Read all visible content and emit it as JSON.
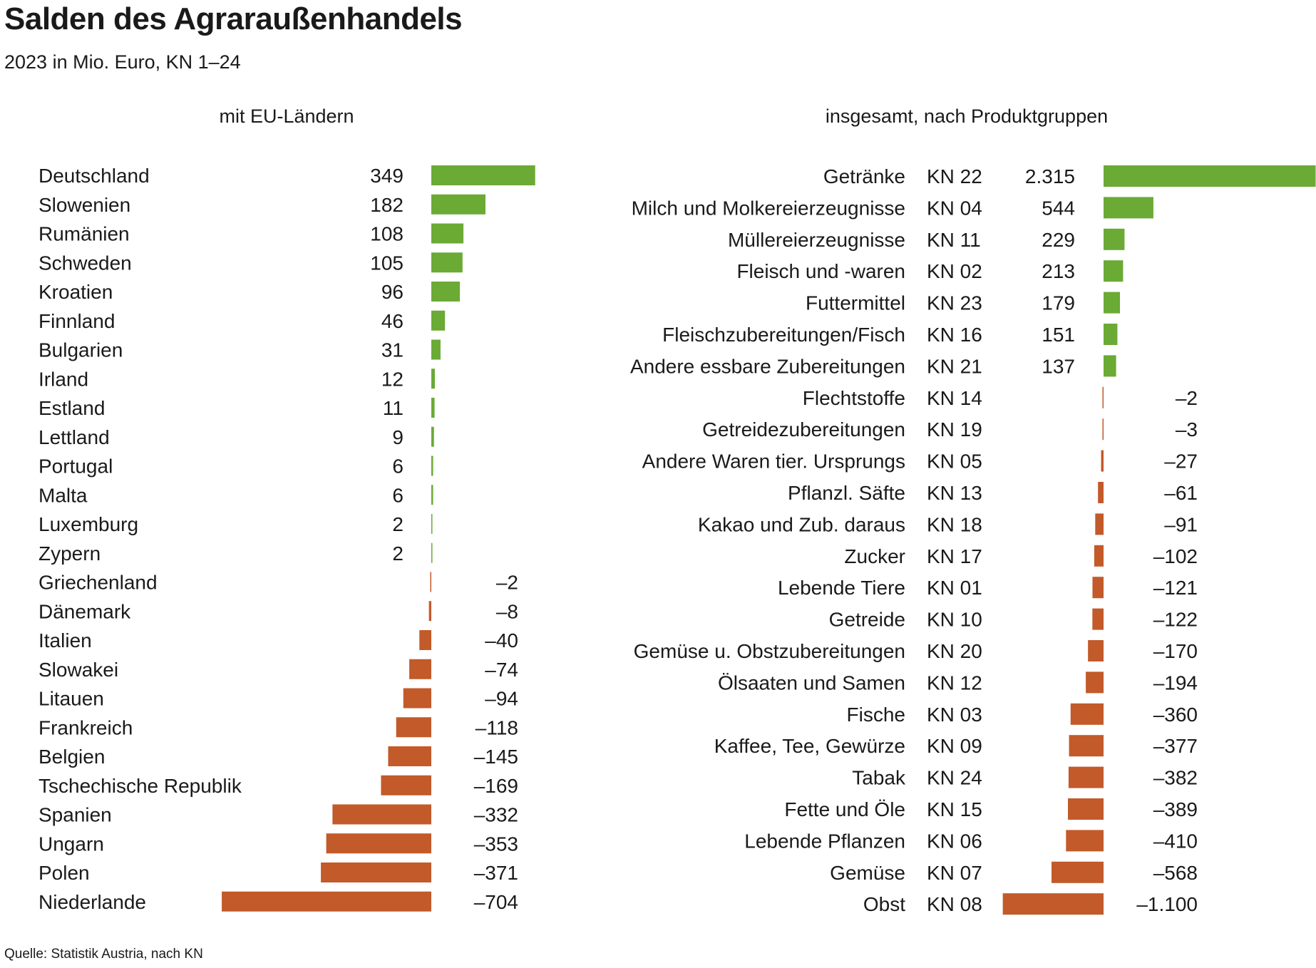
{
  "title": "Salden des Agraraußenhandels",
  "subtitle": "2023 in Mio. Euro, KN 1–24",
  "source": "Quelle: Statistik Austria, nach KN",
  "colors": {
    "positive": "#6aaa35",
    "negative": "#c25a2a"
  },
  "chart_data": [
    {
      "type": "bar",
      "orientation": "horizontal",
      "title": "mit EU-Ländern",
      "categories": [
        "Deutschland",
        "Slowenien",
        "Rumänien",
        "Schweden",
        "Kroatien",
        "Finnland",
        "Bulgarien",
        "Irland",
        "Estland",
        "Lettland",
        "Portugal",
        "Malta",
        "Luxemburg",
        "Zypern",
        "Griechenland",
        "Dänemark",
        "Italien",
        "Slowakei",
        "Litauen",
        "Frankreich",
        "Belgien",
        "Tschechische Republik",
        "Spanien",
        "Ungarn",
        "Polen",
        "Niederlande"
      ],
      "values": [
        349,
        182,
        108,
        105,
        96,
        46,
        31,
        12,
        11,
        9,
        6,
        6,
        2,
        2,
        -2,
        -8,
        -40,
        -74,
        -94,
        -118,
        -145,
        -169,
        -332,
        -353,
        -371,
        -704
      ],
      "value_labels": [
        "349",
        "182",
        "108",
        "105",
        "96",
        "46",
        "31",
        "12",
        "11",
        "9",
        "6",
        "6",
        "2",
        "2",
        "–2",
        "–8",
        "–40",
        "–74",
        "–94",
        "–118",
        "–145",
        "–169",
        "–332",
        "–353",
        "–371",
        "–704"
      ]
    },
    {
      "type": "bar",
      "orientation": "horizontal",
      "title": "insgesamt, nach Produktgruppen",
      "categories": [
        "Getränke",
        "Milch und Molkereierzeugnisse",
        "Müllereierzeugnisse",
        "Fleisch und -waren",
        "Futtermittel",
        "Fleischzubereitungen/Fisch",
        "Andere essbare Zubereitungen",
        "Flechtstoffe",
        "Getreidezubereitungen",
        "Andere Waren tier. Ursprungs",
        "Pflanzl. Säfte",
        "Kakao und Zub. daraus",
        "Zucker",
        "Lebende Tiere",
        "Getreide",
        "Gemüse u. Obstzubereitungen",
        "Ölsaaten und Samen",
        "Fische",
        "Kaffee, Tee, Gewürze",
        "Tabak",
        "Fette und Öle",
        "Lebende Pflanzen",
        "Gemüse",
        "Obst"
      ],
      "codes": [
        "KN 22",
        "KN 04",
        "KN 11",
        "KN 02",
        "KN 23",
        "KN 16",
        "KN 21",
        "KN 14",
        "KN 19",
        "KN 05",
        "KN 13",
        "KN 18",
        "KN 17",
        "KN 01",
        "KN 10",
        "KN 20",
        "KN 12",
        "KN 03",
        "KN 09",
        "KN 24",
        "KN 15",
        "KN 06",
        "KN 07",
        "KN 08"
      ],
      "values": [
        2315,
        544,
        229,
        213,
        179,
        151,
        137,
        -2,
        -3,
        -27,
        -61,
        -91,
        -102,
        -121,
        -122,
        -170,
        -194,
        -360,
        -377,
        -382,
        -389,
        -410,
        -568,
        -1100
      ],
      "value_labels": [
        "2.315",
        "544",
        "229",
        "213",
        "179",
        "151",
        "137",
        "–2",
        "–3",
        "–27",
        "–61",
        "–91",
        "–102",
        "–121",
        "–122",
        "–170",
        "–194",
        "–360",
        "–377",
        "–382",
        "–389",
        "–410",
        "–568",
        "–1.100"
      ]
    }
  ]
}
